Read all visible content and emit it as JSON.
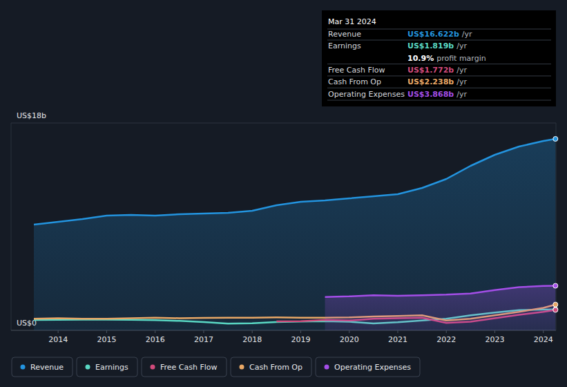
{
  "chart_data": {
    "type": "line",
    "x": [
      2013.5,
      2014,
      2014.5,
      2015,
      2015.5,
      2016,
      2016.5,
      2017,
      2017.5,
      2018,
      2018.5,
      2019,
      2019.5,
      2020,
      2020.5,
      2021,
      2021.5,
      2022,
      2022.5,
      2023,
      2023.5,
      2024,
      2024.25
    ],
    "xlim": [
      2013.03,
      2024.26
    ],
    "xticks": [
      2014,
      2015,
      2016,
      2017,
      2018,
      2019,
      2020,
      2021,
      2022,
      2023,
      2024
    ],
    "ylim": [
      0,
      18
    ],
    "yticks": [
      {
        "value": 0,
        "label": "US$0"
      },
      {
        "value": 18,
        "label": "US$18b"
      }
    ],
    "grid": true,
    "legend": "bottom",
    "marker": "end",
    "series": [
      {
        "name": "Revenue",
        "color": "#2394df",
        "type": "area",
        "values": [
          9.18,
          9.42,
          9.66,
          9.96,
          10.02,
          9.96,
          10.08,
          10.14,
          10.2,
          10.38,
          10.86,
          11.16,
          11.28,
          11.46,
          11.64,
          11.82,
          12.36,
          13.14,
          14.28,
          15.24,
          15.96,
          16.44,
          16.622
        ]
      },
      {
        "name": "Earnings",
        "color": "#5ad8c4",
        "type": "line",
        "values": [
          0.9,
          0.92,
          0.93,
          0.93,
          0.92,
          0.88,
          0.82,
          0.72,
          0.58,
          0.62,
          0.72,
          0.76,
          0.8,
          0.75,
          0.6,
          0.7,
          0.85,
          1.0,
          1.3,
          1.55,
          1.75,
          1.8,
          1.819
        ]
      },
      {
        "name": "Free Cash Flow",
        "color": "#d14b7c",
        "type": "line",
        "values": [
          null,
          null,
          null,
          null,
          null,
          null,
          null,
          null,
          null,
          null,
          0.78,
          0.8,
          0.9,
          0.85,
          1.0,
          1.05,
          1.1,
          0.65,
          0.75,
          1.05,
          1.35,
          1.6,
          1.772
        ]
      },
      {
        "name": "Cash From Op",
        "color": "#e9a866",
        "type": "line",
        "values": [
          1.0,
          1.05,
          1.0,
          1.0,
          1.05,
          1.1,
          1.05,
          1.08,
          1.1,
          1.1,
          1.12,
          1.1,
          1.1,
          1.12,
          1.2,
          1.25,
          1.3,
          0.85,
          1.0,
          1.3,
          1.6,
          1.95,
          2.238
        ]
      },
      {
        "name": "Operating Expenses",
        "color": "#a44ee8",
        "type": "area",
        "values": [
          null,
          null,
          null,
          null,
          null,
          null,
          null,
          null,
          null,
          null,
          null,
          null,
          2.9,
          2.95,
          3.05,
          3.0,
          3.05,
          3.1,
          3.2,
          3.5,
          3.75,
          3.85,
          3.868
        ]
      }
    ],
    "annotations": {
      "title": "Mar 31 2024",
      "rows": [
        {
          "label": "Revenue",
          "value": "US$16.622b",
          "unit": "/yr",
          "color": "#2394df"
        },
        {
          "label": "Earnings",
          "value": "US$1.819b",
          "unit": "/yr",
          "color": "#5ad8c4"
        },
        {
          "value": "10.9%",
          "unit": "profit margin",
          "color": "#ffffff"
        },
        {
          "label": "Free Cash Flow",
          "value": "US$1.772b",
          "unit": "/yr",
          "color": "#d14b7c"
        },
        {
          "label": "Cash From Op",
          "value": "US$2.238b",
          "unit": "/yr",
          "color": "#e9a866"
        },
        {
          "label": "Operating Expenses",
          "value": "US$3.868b",
          "unit": "/yr",
          "color": "#a44ee8"
        }
      ]
    }
  }
}
